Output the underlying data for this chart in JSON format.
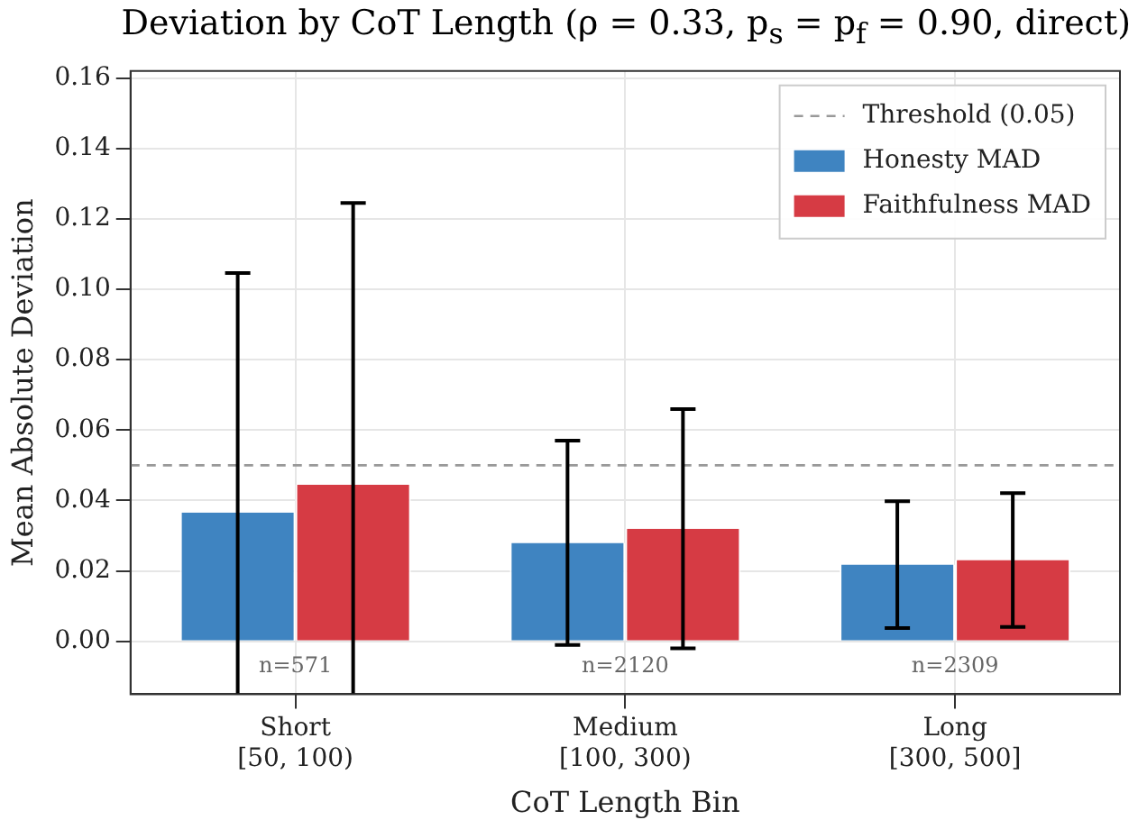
{
  "chart_data": {
    "type": "bar",
    "title": "Deviation by CoT Length (ρ = 0.33, p$_{s}$ = p$_{f}$ = 0.90, direct)",
    "xlabel": "CoT Length Bin",
    "ylabel": "Mean Absolute Deviation",
    "categories": [
      "Short\n[50, 100)",
      "Medium\n[100, 300)",
      "Long\n[300, 500]"
    ],
    "series": [
      {
        "name": "Honesty MAD",
        "color": "#3f84c1",
        "values": [
          0.0366,
          0.028,
          0.0218
        ],
        "errors": [
          0.068,
          0.029,
          0.018
        ]
      },
      {
        "name": "Faithfulness MAD",
        "color": "#d63b44",
        "values": [
          0.0445,
          0.032,
          0.0231
        ],
        "errors": [
          0.08,
          0.034,
          0.019
        ]
      }
    ],
    "ref_lines": [
      {
        "axis": "y",
        "value": 0.05,
        "label": "Threshold (0.05)",
        "color": "#999999",
        "line_style": "dashed"
      }
    ],
    "annotations": [
      "n=571",
      "n=2120",
      "n=2309"
    ],
    "ylim": [
      -0.015,
      0.162
    ],
    "yticks": [
      {
        "value": 0,
        "label": "0.00"
      },
      {
        "value": 0.02,
        "label": "0.02"
      },
      {
        "value": 0.04,
        "label": "0.04"
      },
      {
        "value": 0.06,
        "label": "0.06"
      },
      {
        "value": 0.08,
        "label": "0.08"
      },
      {
        "value": 0.1,
        "label": "0.10"
      },
      {
        "value": 0.12,
        "label": "0.12"
      },
      {
        "value": 0.14,
        "label": "0.14"
      },
      {
        "value": 0.16,
        "label": "0.16"
      }
    ],
    "grid": true,
    "legend": "top right"
  }
}
